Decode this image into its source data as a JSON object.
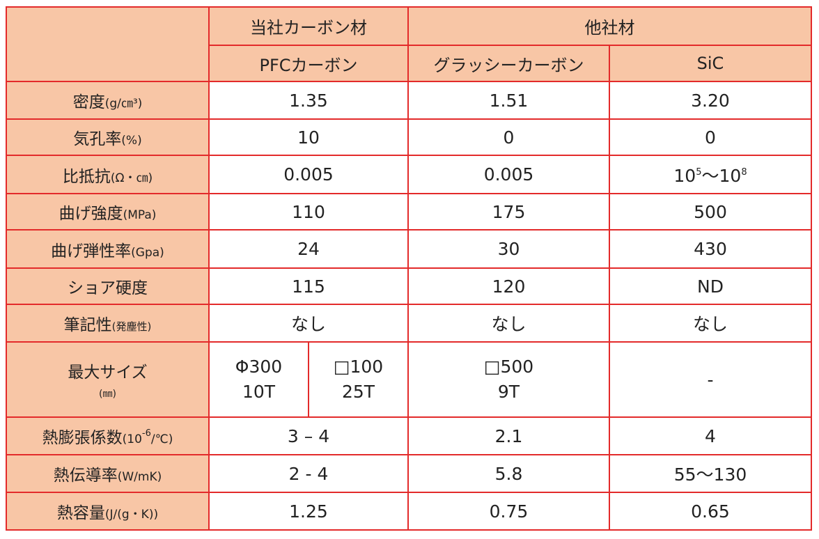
{
  "header": {
    "group_own": "当社カーボン材",
    "group_other": "他社材",
    "col_pfc": "PFCカーボン",
    "col_glassy": "グラッシーカーボン",
    "col_sic": "SiC"
  },
  "rows": {
    "density": {
      "label": "密度",
      "unit": "(g/㎝³)",
      "pfc": "1.35",
      "glassy": "1.51",
      "sic": "3.20"
    },
    "porosity": {
      "label": "気孔率",
      "unit": "(%)",
      "pfc": "10",
      "glassy": "0",
      "sic": "0"
    },
    "resistivity": {
      "label": "比抵抗",
      "unit": "(Ω・㎝)",
      "pfc": "0.005",
      "glassy": "0.005",
      "sic_base1": "10",
      "sic_exp1": "5",
      "sic_sep": "〜",
      "sic_base2": "10",
      "sic_exp2": "8"
    },
    "bending_strength": {
      "label": "曲げ強度",
      "unit": "(MPa)",
      "pfc": "110",
      "glassy": "175",
      "sic": "500"
    },
    "bending_modulus": {
      "label": "曲げ弾性率",
      "unit": "(Gpa)",
      "pfc": "24",
      "glassy": "30",
      "sic": "430"
    },
    "shore_hardness": {
      "label": "ショア硬度",
      "pfc": "115",
      "glassy": "120",
      "sic": "ND"
    },
    "writing": {
      "label": "筆記性",
      "unit": "(発塵性)",
      "pfc": "なし",
      "glassy": "なし",
      "sic": "なし"
    },
    "max_size": {
      "label": "最大サイズ",
      "unit": "(㎜)",
      "pfc_a_line1": "Φ300",
      "pfc_a_line2": "10T",
      "pfc_b_line1": "□100",
      "pfc_b_line2": "25T",
      "glassy_line1": "□500",
      "glassy_line2": "9T",
      "sic": "-"
    },
    "thermal_expansion": {
      "label": "熱膨張係数",
      "unit_pre": "(10",
      "unit_exp": "-6",
      "unit_post": "/℃)",
      "pfc": "3 – 4",
      "glassy": "2.1",
      "sic": "4"
    },
    "thermal_conductivity": {
      "label": "熱伝導率",
      "unit": "(W/mK)",
      "pfc": "2 - 4",
      "glassy": "5.8",
      "sic": "55〜130"
    },
    "heat_capacity": {
      "label": "熱容量",
      "unit": "(J/(g・K))",
      "pfc": "1.25",
      "glassy": "0.75",
      "sic": "0.65"
    }
  },
  "colors": {
    "header_bg": "#f8c6a6",
    "border": "#e32a2a"
  }
}
